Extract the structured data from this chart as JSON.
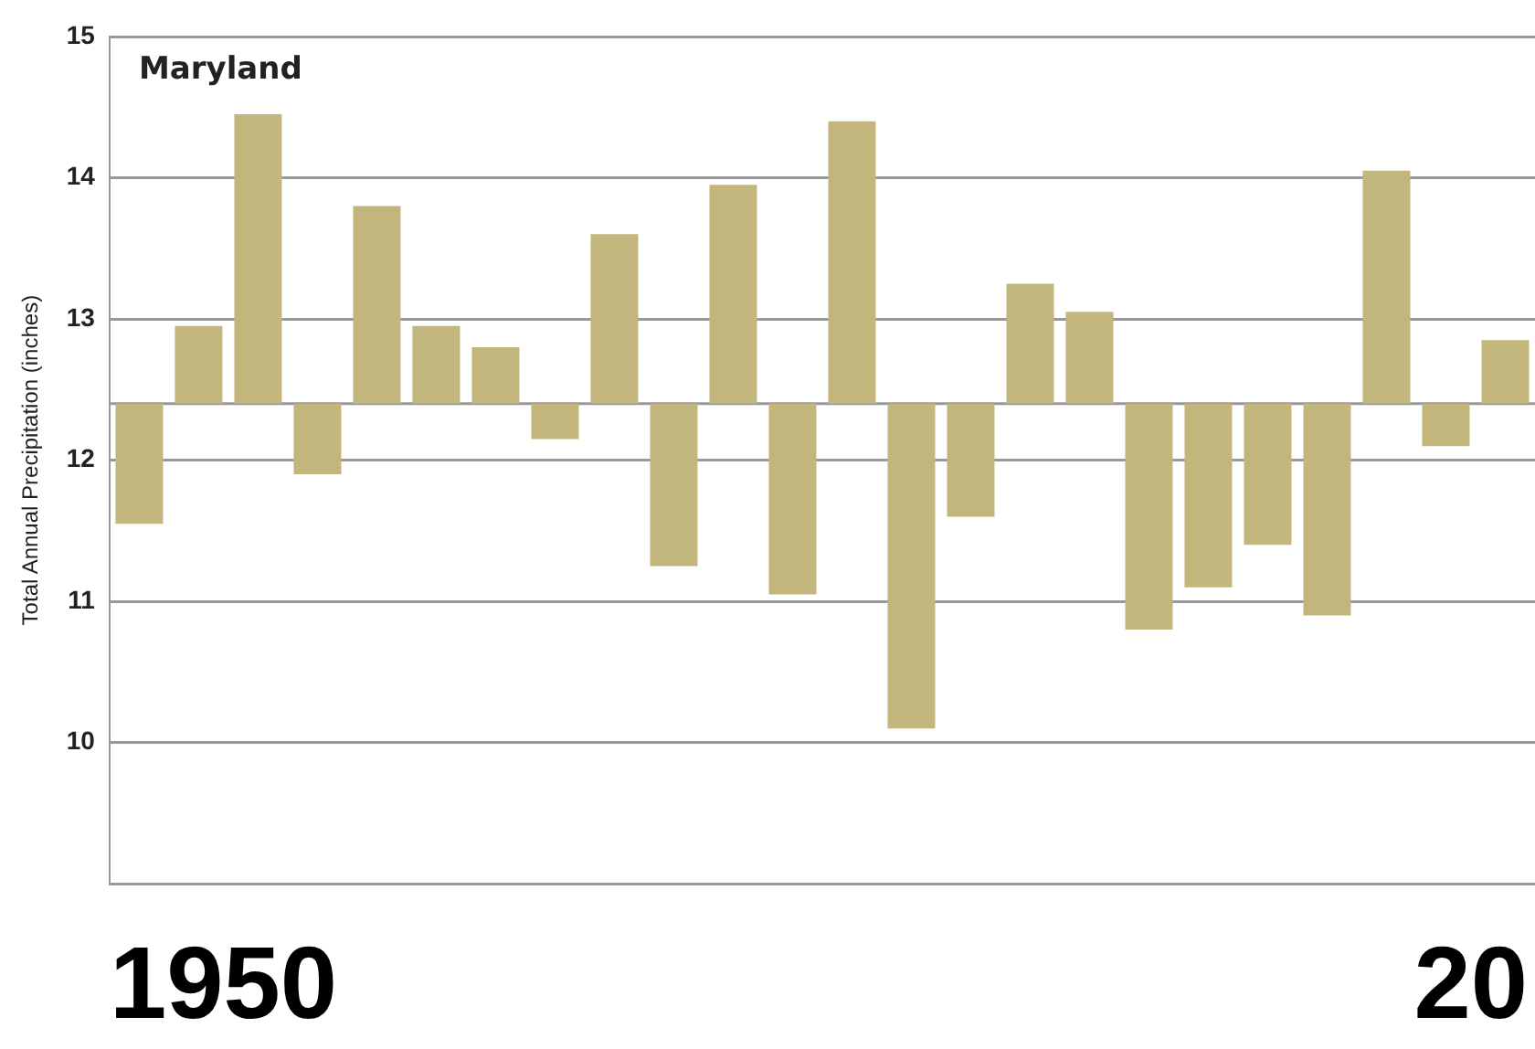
{
  "chart_data": {
    "type": "bar",
    "title": "Maryland",
    "ylabel": "Total Annual Precipitation (inches)",
    "categories": [
      null,
      null,
      null,
      null,
      null,
      null,
      null,
      null,
      null,
      null,
      null,
      null,
      null,
      null,
      null,
      null,
      null,
      null,
      null,
      null,
      null,
      null,
      null,
      null
    ],
    "base": [
      12.4,
      12.4,
      12.4,
      12.4,
      12.4,
      12.4,
      12.4,
      12.4,
      12.4,
      12.4,
      12.4,
      12.4,
      12.4,
      12.4,
      12.4,
      12.4,
      12.4,
      12.4,
      12.4,
      12.4,
      12.4,
      12.4,
      12.4,
      12.4
    ],
    "values": [
      -0.85,
      0.55,
      2.05,
      -0.5,
      1.4,
      0.55,
      0.4,
      -0.25,
      1.2,
      -1.15,
      1.55,
      -1.35,
      2.0,
      -2.3,
      -0.8,
      0.85,
      0.65,
      -1.6,
      -1.3,
      -1.0,
      -1.5,
      1.65,
      -0.3,
      0.45
    ],
    "color": "#c2b67c",
    "ylim": [
      9,
      15
    ],
    "yticks": [
      {
        "value": 9,
        "label": null
      },
      10,
      11,
      12,
      13,
      14,
      15
    ],
    "grid": "y",
    "tick_labels": "y",
    "ref_lines": [
      {
        "axis": "y",
        "value": 12.4,
        "color": "#999999"
      }
    ],
    "annotations": [
      "1950",
      "20"
    ]
  }
}
